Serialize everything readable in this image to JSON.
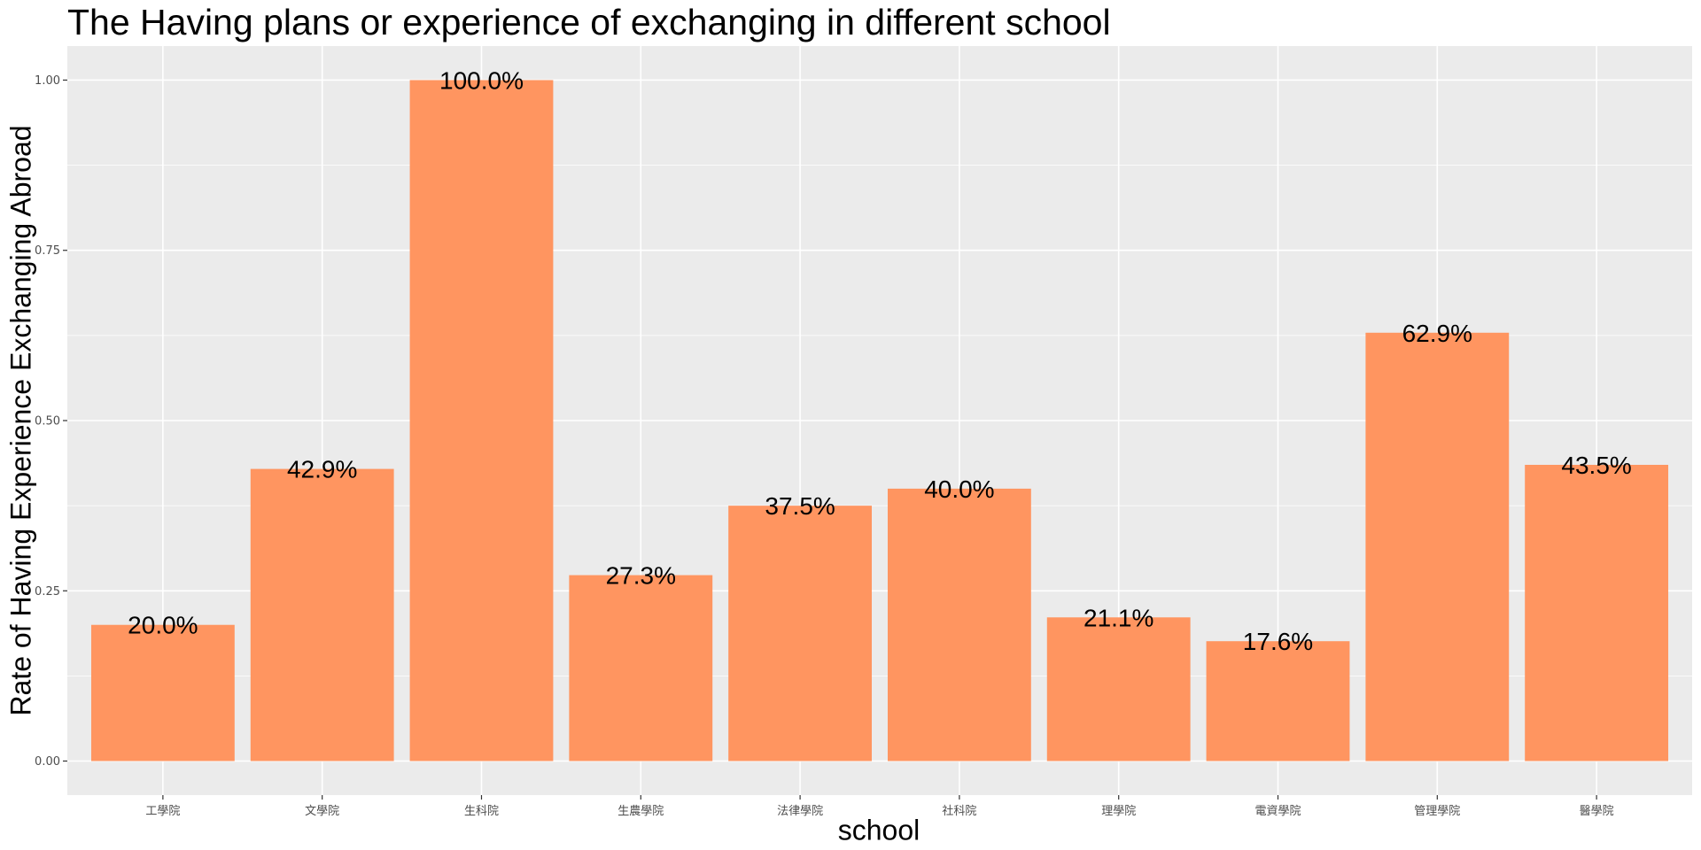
{
  "chart_data": {
    "type": "bar",
    "title": "The Having plans or experience of exchanging in different school",
    "xlabel": "school",
    "ylabel": "Rate of Having Experience Exchanging Abroad",
    "categories": [
      "工學院",
      "文學院",
      "生科院",
      "生農學院",
      "法律學院",
      "社科院",
      "理學院",
      "電資學院",
      "管理學院",
      "醫學院"
    ],
    "values": [
      0.2,
      0.429,
      1.0,
      0.273,
      0.375,
      0.4,
      0.211,
      0.176,
      0.629,
      0.435
    ],
    "data_labels": [
      "20.0%",
      "42.9%",
      "100.0%",
      "27.3%",
      "37.5%",
      "40.0%",
      "21.1%",
      "17.6%",
      "62.9%",
      "43.5%"
    ],
    "ylim": [
      -0.05,
      1.05
    ],
    "yticks": [
      0.0,
      0.25,
      0.5,
      0.75,
      1.0
    ],
    "ytick_labels": [
      "0.00",
      "0.25",
      "0.50",
      "0.75",
      "1.00"
    ],
    "grid": true,
    "legend": "none",
    "colors": {
      "bar": "#FF9560",
      "panel_background": "#EBEBEB",
      "gridline": "#FFFFFF"
    }
  }
}
